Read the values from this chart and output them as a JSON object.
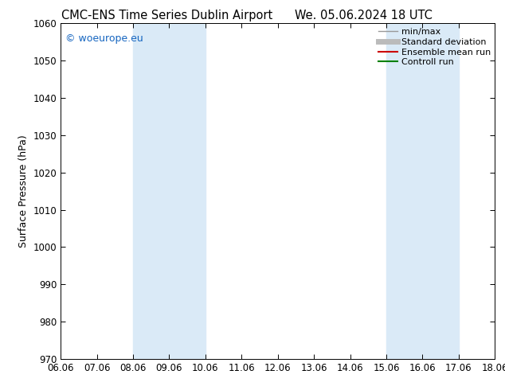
{
  "title_left": "CMC-ENS Time Series Dublin Airport",
  "title_right": "We. 05.06.2024 18 UTC",
  "ylabel": "Surface Pressure (hPa)",
  "ylim": [
    970,
    1060
  ],
  "yticks": [
    970,
    980,
    990,
    1000,
    1010,
    1020,
    1030,
    1040,
    1050,
    1060
  ],
  "xtick_labels": [
    "06.06",
    "07.06",
    "08.06",
    "09.06",
    "10.06",
    "11.06",
    "12.06",
    "13.06",
    "14.06",
    "15.06",
    "16.06",
    "17.06",
    "18.06"
  ],
  "shaded_regions": [
    {
      "xmin": 2,
      "xmax": 4,
      "color": "#daeaf7"
    },
    {
      "xmin": 9,
      "xmax": 11,
      "color": "#daeaf7"
    }
  ],
  "watermark": "© woeurope.eu",
  "legend_entries": [
    {
      "label": "min/max",
      "color": "#999999",
      "lw": 1.0
    },
    {
      "label": "Standard deviation",
      "color": "#bbbbbb",
      "lw": 5
    },
    {
      "label": "Ensemble mean run",
      "color": "#cc0000",
      "lw": 1.5
    },
    {
      "label": "Controll run",
      "color": "#008000",
      "lw": 1.5
    }
  ],
  "background_color": "#ffffff",
  "fig_width": 6.34,
  "fig_height": 4.9,
  "dpi": 100
}
